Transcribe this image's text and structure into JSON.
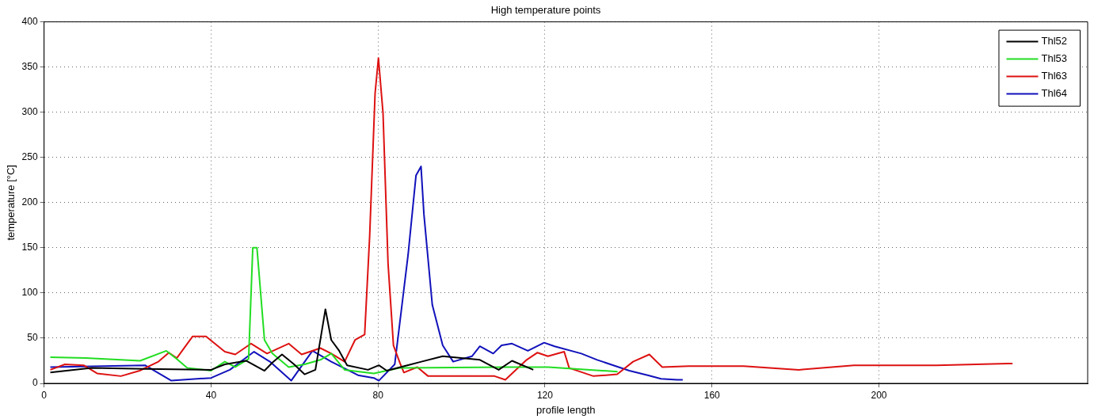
{
  "chart_data": {
    "type": "line",
    "title": "High temperature points",
    "xlabel": "profile length",
    "ylabel": "temperature [°C]",
    "xlim": [
      0,
      250
    ],
    "xticks": [
      0,
      40,
      80,
      120,
      160,
      200
    ],
    "ylim": [
      0,
      400
    ],
    "yticks": [
      0,
      50,
      100,
      150,
      200,
      250,
      300,
      350,
      400
    ],
    "grid": true,
    "legend": "top right",
    "marker": "none",
    "line_style": "solid",
    "series": [
      {
        "name": "Thl52",
        "color": "#000000",
        "x": [
          1.5,
          11.4,
          24.2,
          40,
          43.3,
          48.4,
          52.8,
          54.7,
          57,
          59.9,
          62.4,
          65,
          67.4,
          68.8,
          70.7,
          72.6,
          77.6,
          80.2,
          82.1,
          90.4,
          95.5,
          104.4,
          108.9,
          112.1,
          117.2
        ],
        "values": [
          12,
          17,
          16,
          15,
          21,
          25,
          14,
          23,
          32,
          21,
          10,
          15,
          82,
          48,
          36,
          20,
          15,
          20,
          14,
          24,
          30,
          26,
          15,
          25,
          15
        ]
      },
      {
        "name": "Thl53",
        "color": "#22dd22",
        "x": [
          1.5,
          10,
          23,
          29.3,
          31.8,
          34.3,
          40,
          43.3,
          45.8,
          49,
          50,
          51,
          52.8,
          54.7,
          58.6,
          62.4,
          66.2,
          68.8,
          72,
          79,
          85.1,
          110.6,
          120.8,
          137.4
        ],
        "values": [
          29,
          28,
          25,
          36,
          27,
          17,
          14,
          24,
          18,
          27,
          150,
          150,
          48,
          33,
          18,
          21,
          26,
          33,
          15,
          11,
          17,
          18,
          18,
          13
        ]
      },
      {
        "name": "Thl63",
        "color": "#dd1111",
        "x": [
          1.5,
          5,
          9.5,
          12.7,
          18.4,
          22.9,
          27.4,
          29.9,
          31.8,
          35.6,
          38.8,
          43.3,
          45.8,
          49.6,
          53.4,
          58.6,
          61.7,
          66.2,
          68.8,
          72,
          74.5,
          76.8,
          78,
          79.3,
          80.1,
          81.2,
          82.4,
          83.7,
          85.3,
          86.2,
          89.4,
          92,
          107.9,
          110.5,
          115.6,
          118.2,
          120.7,
          124.6,
          125.8,
          131.6,
          137.3,
          141.1,
          145,
          148.1,
          154.4,
          167.6,
          180.8,
          194,
          213.8,
          232
        ],
        "values": [
          15,
          21,
          20,
          11,
          8,
          14,
          24,
          34,
          28,
          52,
          52,
          35,
          32,
          44,
          33,
          44,
          32,
          39,
          33,
          24,
          48,
          54,
          163,
          321,
          360,
          299,
          133,
          42,
          22,
          12,
          18,
          8,
          8,
          4,
          26,
          34,
          30,
          35,
          17,
          8,
          10,
          24,
          32,
          18,
          19,
          19,
          15,
          20,
          20,
          22
        ]
      },
      {
        "name": "Thl64",
        "color": "#1111bb",
        "x": [
          1.5,
          24.2,
          30.5,
          40,
          44.5,
          50.3,
          54.1,
          59.2,
          64.3,
          68.8,
          75.2,
          79,
          80.2,
          84,
          87.2,
          89.1,
          90.3,
          91,
          93,
          95.5,
          98,
          102.5,
          104.4,
          107.6,
          109.6,
          112.1,
          115.9,
          119.8,
          122.3,
          128.7,
          132.5,
          140.2,
          144.6,
          147.8,
          151.7,
          153
        ],
        "values": [
          18,
          20,
          3,
          6,
          15,
          35,
          24,
          3,
          36,
          24,
          9,
          6,
          3,
          21,
          142,
          230,
          240,
          187,
          87,
          42,
          24,
          30,
          41,
          33,
          42,
          44,
          36,
          45,
          41,
          33,
          26,
          14,
          9,
          5,
          4,
          4
        ]
      }
    ]
  }
}
